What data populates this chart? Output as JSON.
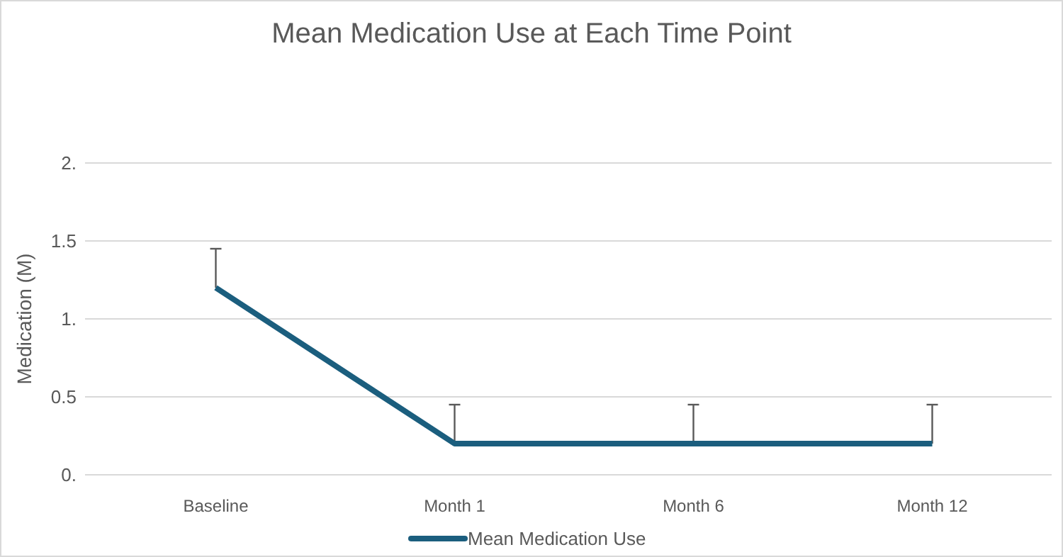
{
  "chart_data": {
    "type": "line",
    "title": "Mean Medication Use at Each Time Point",
    "ylabel": "Medication (M)",
    "categories": [
      "Baseline",
      "Month 1",
      "Month 6",
      "Month 12"
    ],
    "series": [
      {
        "name": "Mean Medication Use",
        "color": "#1b5e7e",
        "values": [
          1.2,
          0.2,
          0.2,
          0.2
        ],
        "errors": [
          [
            1.2,
            1.45
          ],
          [
            0.2,
            0.45
          ],
          [
            0.2,
            0.45
          ],
          [
            0.2,
            0.45
          ]
        ]
      }
    ],
    "ylim": [
      0,
      2
    ],
    "yticks": [
      {
        "value": 0,
        "label": "0."
      },
      {
        "value": 0.5,
        "label": "0.5"
      },
      {
        "value": 1,
        "label": "1."
      },
      {
        "value": 1.5,
        "label": "1.5"
      },
      {
        "value": 2,
        "label": "2."
      }
    ],
    "grid": "y",
    "legend": "bottom",
    "marker": "none",
    "line_style": "solid"
  }
}
